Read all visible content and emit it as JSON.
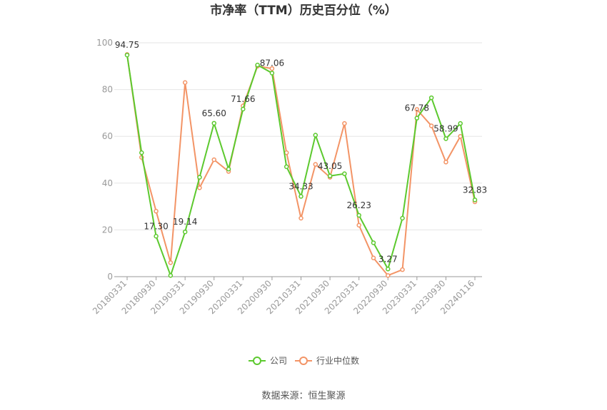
{
  "chart_data": {
    "type": "line",
    "title": "市净率（TTM）历史百分位（%）",
    "ylim": [
      0,
      100
    ],
    "yticks": [
      "0",
      "20",
      "40",
      "60",
      "80",
      "100"
    ],
    "x_tick_labels": [
      "20180331",
      "20180930",
      "20190331",
      "20190930",
      "20200331",
      "20200930",
      "20210331",
      "20210930",
      "20220331",
      "20220930",
      "20230331",
      "20230930",
      "20240116"
    ],
    "x": [
      "20180331",
      "20180630",
      "20180930",
      "20181231",
      "20190331",
      "20190630",
      "20190930",
      "20191231",
      "20200331",
      "20200630",
      "20200930",
      "20201231",
      "20210331",
      "20210630",
      "20210930",
      "20211231",
      "20220331",
      "20220630",
      "20220930",
      "20221231",
      "20230331",
      "20230630",
      "20230930",
      "20231231",
      "20240116"
    ],
    "series": [
      {
        "name": "公司",
        "color": "#5cc92e",
        "values": [
          94.75,
          53.0,
          17.3,
          0.5,
          19.14,
          42.5,
          65.6,
          46.0,
          71.66,
          90.5,
          87.06,
          47.0,
          34.33,
          60.5,
          43.05,
          44.0,
          26.23,
          14.5,
          3.27,
          25.0,
          67.78,
          76.5,
          58.99,
          65.5,
          32.83
        ]
      },
      {
        "name": "行业中位数",
        "color": "#f39466",
        "values": [
          95.0,
          51.0,
          28.0,
          6.0,
          83.0,
          38.0,
          50.0,
          45.0,
          73.0,
          90.0,
          89.0,
          53.0,
          25.0,
          48.0,
          42.5,
          65.5,
          22.0,
          8.0,
          0.5,
          3.0,
          71.5,
          64.5,
          49.0,
          60.0,
          32.0
        ]
      }
    ],
    "data_labels": [
      {
        "index": 0,
        "text": "94.75"
      },
      {
        "index": 2,
        "text": "17.30"
      },
      {
        "index": 4,
        "text": "19.14"
      },
      {
        "index": 6,
        "text": "65.60"
      },
      {
        "index": 8,
        "text": "71.66"
      },
      {
        "index": 10,
        "text": "87.06"
      },
      {
        "index": 12,
        "text": "34.33"
      },
      {
        "index": 14,
        "text": "43.05"
      },
      {
        "index": 16,
        "text": "26.23"
      },
      {
        "index": 18,
        "text": "3.27"
      },
      {
        "index": 20,
        "text": "67.78"
      },
      {
        "index": 22,
        "text": "58.99"
      },
      {
        "index": 24,
        "text": "32.83"
      }
    ],
    "legend_position": "bottom-center",
    "grid": true
  },
  "source_text": "数据来源：恒生聚源"
}
